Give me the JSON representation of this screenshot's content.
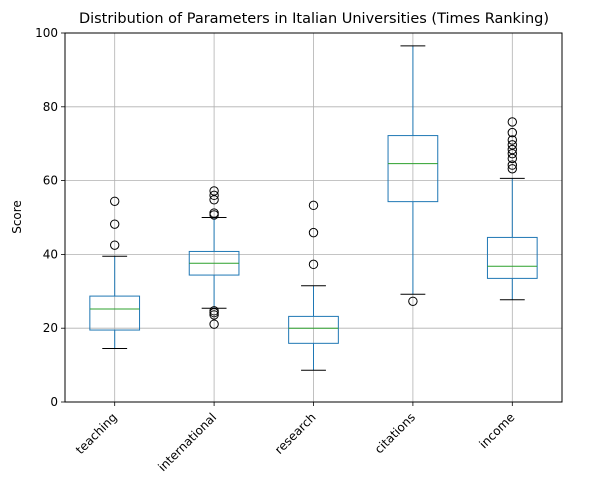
{
  "chart_data": {
    "type": "box",
    "title": "Distribution of Parameters in Italian Universities (Times Ranking)",
    "xlabel": "",
    "ylabel": "Score",
    "ylim": [
      0,
      100
    ],
    "yticks": [
      0,
      20,
      40,
      60,
      80,
      100
    ],
    "grid": true,
    "categories": [
      "teaching",
      "international",
      "research",
      "citations",
      "income"
    ],
    "boxes": [
      {
        "category": "teaching",
        "whisker_low": 14.5,
        "q1": 19.5,
        "median": 25.2,
        "q3": 28.7,
        "whisker_high": 39.5,
        "outliers": [
          42.5,
          48.2,
          54.4
        ]
      },
      {
        "category": "international",
        "whisker_low": 25.4,
        "q1": 34.4,
        "median": 37.6,
        "q3": 40.8,
        "whisker_high": 50.0,
        "outliers": [
          21.1,
          23.6,
          24.2,
          24.7,
          50.7,
          51.2,
          54.8,
          56.0,
          57.2
        ]
      },
      {
        "category": "research",
        "whisker_low": 8.6,
        "q1": 15.9,
        "median": 20.0,
        "q3": 23.2,
        "whisker_high": 31.5,
        "outliers": [
          37.3,
          45.9,
          53.3
        ]
      },
      {
        "category": "citations",
        "whisker_low": 29.2,
        "q1": 54.3,
        "median": 64.6,
        "q3": 72.2,
        "whisker_high": 96.5,
        "outliers": [
          27.3
        ]
      },
      {
        "category": "income",
        "whisker_low": 27.7,
        "q1": 33.5,
        "median": 36.8,
        "q3": 44.6,
        "whisker_high": 60.6,
        "outliers": [
          63.2,
          64.2,
          66.0,
          67.3,
          68.4,
          69.7,
          71.0,
          73.0,
          75.9
        ]
      }
    ]
  }
}
